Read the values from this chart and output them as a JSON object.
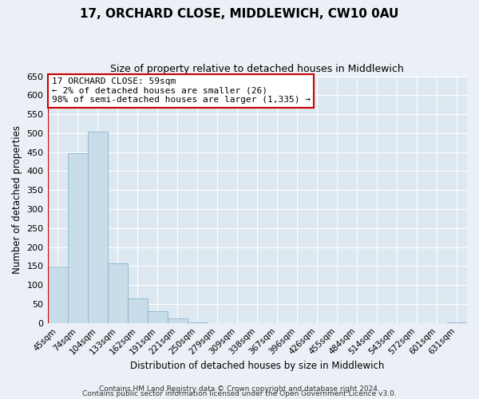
{
  "title": "17, ORCHARD CLOSE, MIDDLEWICH, CW10 0AU",
  "subtitle": "Size of property relative to detached houses in Middlewich",
  "xlabel": "Distribution of detached houses by size in Middlewich",
  "ylabel": "Number of detached properties",
  "footer_line1": "Contains HM Land Registry data © Crown copyright and database right 2024.",
  "footer_line2": "Contains public sector information licensed under the Open Government Licence v3.0.",
  "bin_labels": [
    "45sqm",
    "74sqm",
    "104sqm",
    "133sqm",
    "162sqm",
    "191sqm",
    "221sqm",
    "250sqm",
    "279sqm",
    "309sqm",
    "338sqm",
    "367sqm",
    "396sqm",
    "426sqm",
    "455sqm",
    "484sqm",
    "514sqm",
    "543sqm",
    "572sqm",
    "601sqm",
    "631sqm"
  ],
  "bar_values": [
    148,
    447,
    505,
    157,
    65,
    30,
    12,
    2,
    0,
    0,
    0,
    0,
    0,
    0,
    0,
    0,
    0,
    0,
    0,
    0,
    2
  ],
  "bar_color": "#c9dcea",
  "bar_edge_color": "#8ab4cc",
  "ylim": [
    0,
    650
  ],
  "yticks": [
    0,
    50,
    100,
    150,
    200,
    250,
    300,
    350,
    400,
    450,
    500,
    550,
    600,
    650
  ],
  "annotation_title": "17 ORCHARD CLOSE: 59sqm",
  "annotation_line2": "← 2% of detached houses are smaller (26)",
  "annotation_line3": "98% of semi-detached houses are larger (1,335) →",
  "marker_color": "#cc0000",
  "annotation_box_color": "#ffffff",
  "annotation_box_edge": "#cc0000",
  "background_color": "#eaf0f6",
  "grid_color": "#ffffff",
  "plot_bg_color": "#dde8f0"
}
